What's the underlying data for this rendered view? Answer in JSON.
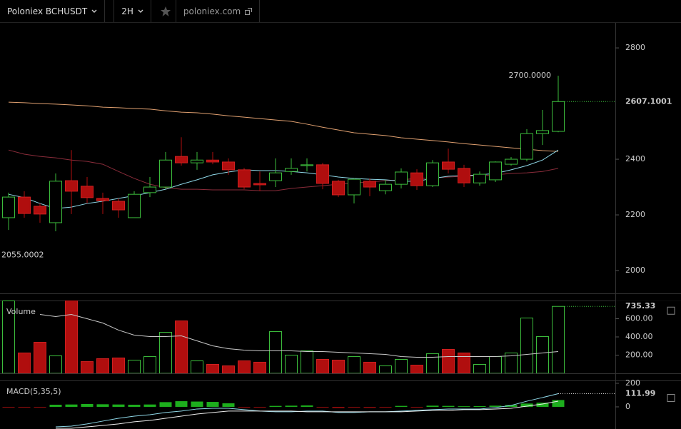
{
  "toolbar": {
    "symbol": "Poloniex BCHUSDT",
    "interval": "2H",
    "source": "poloniex.com"
  },
  "chart_data": [
    {
      "type": "candlestick",
      "open": [
        2190,
        2264,
        2231,
        2172,
        2323,
        2303,
        2259,
        2249,
        2190,
        2280,
        2300,
        2410,
        2387,
        2397,
        2390,
        2362,
        2313,
        2323,
        2356,
        2377,
        2380,
        2321,
        2272,
        2321,
        2287,
        2310,
        2351,
        2305,
        2390,
        2367,
        2315,
        2326,
        2382,
        2400,
        2492,
        2500
      ],
      "high": [
        2280,
        2285,
        2241,
        2349,
        2433,
        2336,
        2280,
        2259,
        2285,
        2336,
        2426,
        2479,
        2426,
        2426,
        2403,
        2369,
        2356,
        2403,
        2403,
        2403,
        2387,
        2326,
        2331,
        2331,
        2326,
        2367,
        2364,
        2397,
        2438,
        2380,
        2356,
        2392,
        2408,
        2508,
        2577,
        2700
      ],
      "low": [
        2146,
        2190,
        2172,
        2141,
        2203,
        2241,
        2203,
        2190,
        2190,
        2264,
        2292,
        2377,
        2362,
        2382,
        2344,
        2292,
        2285,
        2300,
        2344,
        2356,
        2292,
        2264,
        2241,
        2267,
        2274,
        2295,
        2290,
        2300,
        2349,
        2300,
        2305,
        2318,
        2377,
        2392,
        2451,
        2497
      ],
      "close": [
        2264,
        2205,
        2203,
        2321,
        2285,
        2262,
        2251,
        2218,
        2274,
        2300,
        2397,
        2387,
        2397,
        2390,
        2362,
        2300,
        2308,
        2351,
        2367,
        2380,
        2313,
        2272,
        2328,
        2300,
        2310,
        2354,
        2305,
        2387,
        2364,
        2315,
        2346,
        2390,
        2400,
        2492,
        2503,
        2607.1001
      ],
      "up_color": "#3cbc3c",
      "down_color": "#b00e0e",
      "ylim": [
        1918,
        2890
      ],
      "yticks": [
        2000,
        2200,
        2400,
        2800
      ],
      "annotations": [
        {
          "value": 2700,
          "label": "2700.0000"
        },
        {
          "value": 2055.0002,
          "label": "2055.0002"
        }
      ],
      "series": [
        {
          "color": "#e0a070",
          "values": [
            2605,
            2603,
            2600,
            2598,
            2595,
            2592,
            2587,
            2585,
            2582,
            2580,
            2574,
            2569,
            2567,
            2562,
            2556,
            2551,
            2546,
            2541,
            2536,
            2526,
            2515,
            2505,
            2495,
            2490,
            2485,
            2477,
            2472,
            2467,
            2462,
            2456,
            2451,
            2446,
            2441,
            2436,
            2431,
            2428
          ]
        },
        {
          "color": "#8a2c3a",
          "values": [
            2433,
            2418,
            2410,
            2405,
            2397,
            2392,
            2382,
            2356,
            2331,
            2310,
            2298,
            2292,
            2292,
            2290,
            2290,
            2290,
            2287,
            2287,
            2295,
            2300,
            2305,
            2310,
            2315,
            2318,
            2323,
            2326,
            2331,
            2333,
            2336,
            2339,
            2341,
            2344,
            2349,
            2351,
            2356,
            2367
          ]
        },
        {
          "color": "#8fd8e8",
          "values": [
            2274,
            2262,
            2241,
            2223,
            2228,
            2241,
            2249,
            2259,
            2269,
            2280,
            2292,
            2310,
            2326,
            2344,
            2354,
            2362,
            2359,
            2359,
            2356,
            2351,
            2344,
            2336,
            2331,
            2328,
            2326,
            2321,
            2321,
            2331,
            2339,
            2341,
            2344,
            2349,
            2362,
            2377,
            2397,
            2433
          ]
        }
      ]
    },
    {
      "type": "bar",
      "title": "Volume",
      "values": [
        796,
        224,
        341,
        192,
        800,
        129,
        161,
        169,
        145,
        184,
        451,
        576,
        137,
        98,
        82,
        137,
        122,
        459,
        200,
        247,
        153,
        145,
        184,
        122,
        82,
        153,
        90,
        216,
        263,
        224,
        98,
        184,
        224,
        608,
        404,
        735.33
      ],
      "ylim": [
        0,
        800
      ],
      "yticks": [
        {
          "value": 200,
          "label": "200.00"
        },
        {
          "value": 400,
          "label": "400.00"
        },
        {
          "value": 600,
          "label": "600.00"
        }
      ],
      "series": [
        {
          "color": "#c8c8c8",
          "values": [
            null,
            null,
            647,
            624,
            647,
            600,
            553,
            475,
            420,
            404,
            404,
            412,
            357,
            302,
            271,
            255,
            247,
            247,
            247,
            239,
            239,
            231,
            224,
            216,
            208,
            184,
            176,
            176,
            184,
            184,
            184,
            184,
            192,
            208,
            224,
            239
          ]
        }
      ]
    },
    {
      "type": "macd",
      "title": "MACD(5,35,5)",
      "histogram": [
        -6,
        -6,
        -5,
        18,
        20,
        24,
        22,
        20,
        18,
        20,
        40,
        48,
        45,
        42,
        30,
        -5,
        -6,
        8,
        10,
        12,
        -6,
        -10,
        -6,
        -8,
        -5,
        8,
        -5,
        10,
        8,
        5,
        6,
        10,
        15,
        28,
        35,
        58
      ],
      "up_color": "#22cc22",
      "down_color": "#b00e0e",
      "ylim": [
        -188,
        224
      ],
      "yticks": [
        0,
        200
      ],
      "series": [
        {
          "color": "#8fd8e8",
          "values": [
            null,
            null,
            null,
            -170,
            -164,
            -145,
            -121,
            -97,
            -79,
            -67,
            -48,
            -36,
            -18,
            -12,
            -12,
            -24,
            -36,
            -42,
            -42,
            -36,
            -36,
            -48,
            -48,
            -42,
            -42,
            -36,
            -30,
            -24,
            -18,
            -18,
            -18,
            -6,
            12,
            48,
            79,
            111.99
          ]
        },
        {
          "color": "#eeeeee",
          "values": [
            null,
            null,
            null,
            -182,
            -182,
            -170,
            -158,
            -145,
            -127,
            -115,
            -97,
            -79,
            -61,
            -48,
            -36,
            -36,
            -36,
            -36,
            -36,
            -42,
            -42,
            -42,
            -42,
            -42,
            -42,
            -42,
            -36,
            -30,
            -30,
            -24,
            -24,
            -18,
            -12,
            6,
            24,
            48
          ]
        }
      ]
    }
  ]
}
